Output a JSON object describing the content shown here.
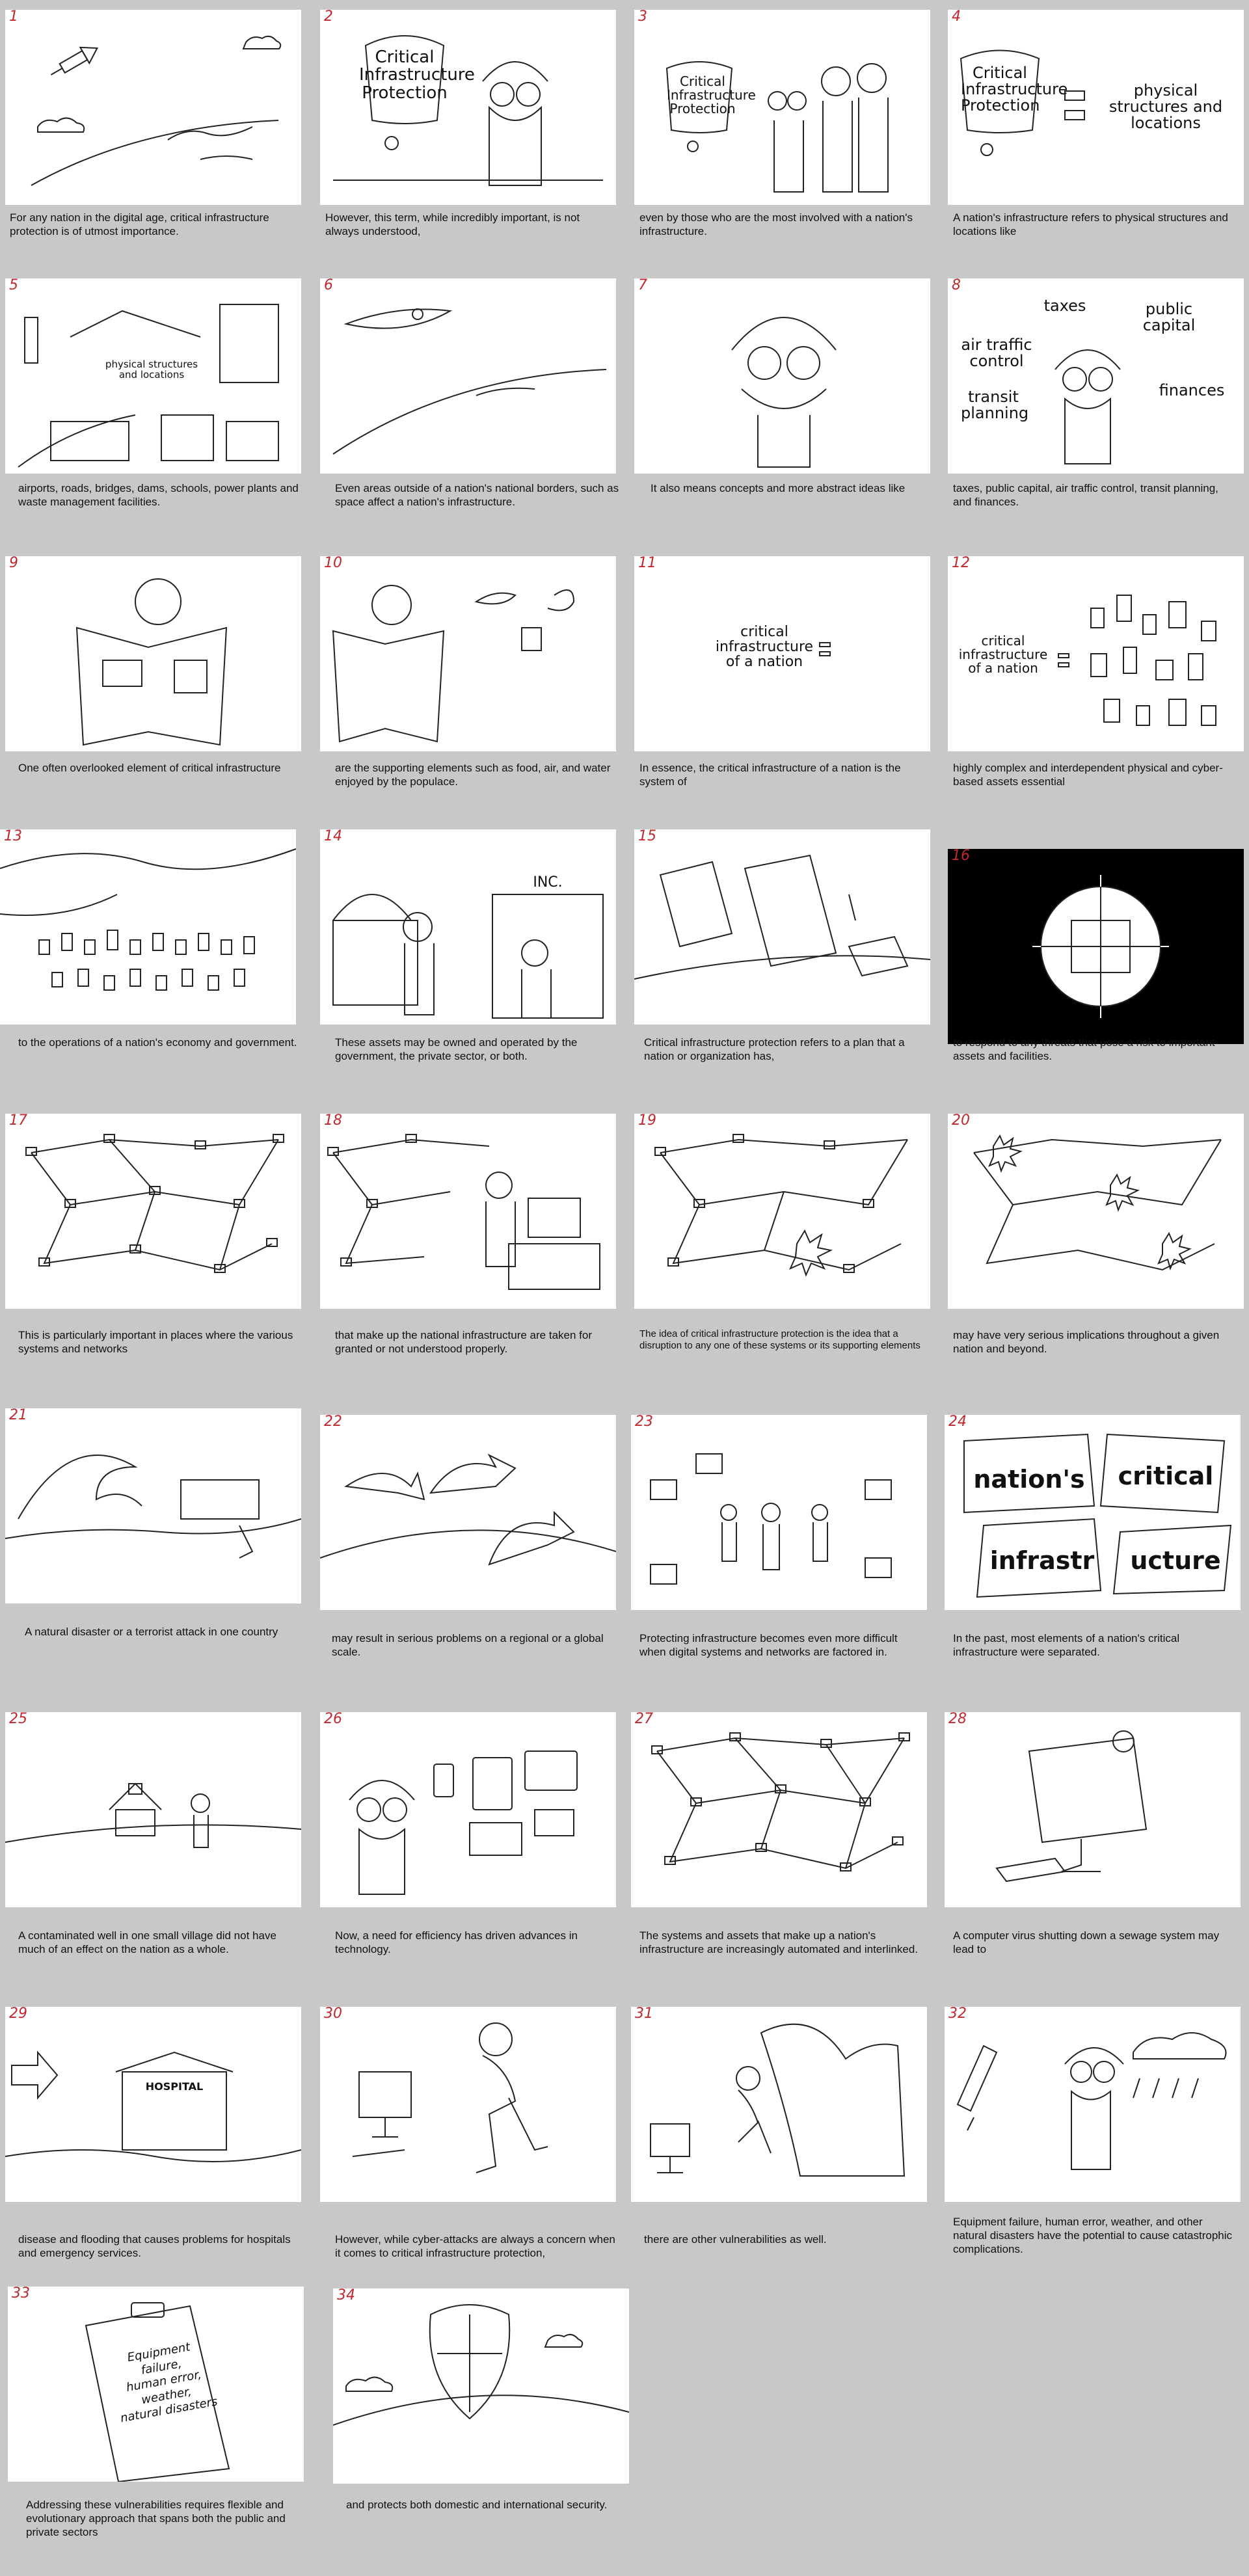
{
  "page": {
    "background": "#c8c8c8",
    "panel_number_color": "#c1272d"
  },
  "panels": [
    {
      "number": "1",
      "caption": "For any nation in the digital age, critical infrastructure protection is of utmost importance."
    },
    {
      "number": "2",
      "caption": "However, this term, while incredibly important, is not always understood,",
      "text": "Critical Infrastructure Protection"
    },
    {
      "number": "3",
      "caption": "even by those who are the most involved with a nation's infrastructure.",
      "text": "Critical Infrastructure Protection"
    },
    {
      "number": "4",
      "caption": "A nation's infrastructure refers to physical structures and locations like",
      "text": "Critical Infrastructure Protection",
      "text2": "physical structures and locations"
    },
    {
      "number": "5",
      "caption": "airports, roads, bridges, dams, schools, power plants and waste management facilities.",
      "text": "physical structures and locations"
    },
    {
      "number": "6",
      "caption": "Even areas outside of a nation's national borders, such as space affect a nation's infrastructure."
    },
    {
      "number": "7",
      "caption": "It also means concepts and more abstract ideas like"
    },
    {
      "number": "8",
      "caption": "taxes, public capital, air traffic control, transit planning, and finances.",
      "words": [
        "taxes",
        "public capital",
        "air traffic control",
        "transit planning",
        "finances"
      ]
    },
    {
      "number": "9",
      "caption": "One often overlooked element of critical infrastructure"
    },
    {
      "number": "10",
      "caption": "are the supporting elements such as food, air, and water enjoyed by the populace."
    },
    {
      "number": "11",
      "caption": "In essence, the critical infrastructure of a nation is the system of",
      "text": "critical infrastructure of a nation"
    },
    {
      "number": "12",
      "caption": "highly complex and interdependent physical and cyber-based assets essential",
      "text": "critical infrastructure of a nation"
    },
    {
      "number": "13",
      "caption": "to the operations of a nation's economy and government."
    },
    {
      "number": "14",
      "caption": "These assets may be owned and operated by the government, the private sector, or both.",
      "text": "INC."
    },
    {
      "number": "15",
      "caption": "Critical infrastructure protection refers to a plan that a nation or organization has,"
    },
    {
      "number": "16",
      "caption": "to respond to any threats that pose a risk to important assets and facilities."
    },
    {
      "number": "17",
      "caption": "This is particularly important in places where the various systems and networks"
    },
    {
      "number": "18",
      "caption": "that make up the national infrastructure are taken for granted or not understood properly."
    },
    {
      "number": "19",
      "caption": "The idea of critical infrastructure protection is the idea that a disruption to any one of these systems or its supporting elements"
    },
    {
      "number": "20",
      "caption": "may have very serious implications throughout a given nation and beyond."
    },
    {
      "number": "21",
      "caption": "A natural disaster or a terrorist attack in one country"
    },
    {
      "number": "22",
      "caption": "may result in serious problems on a regional or a global scale."
    },
    {
      "number": "23",
      "caption": "Protecting infrastructure becomes even more difficult when digital systems and networks are factored in."
    },
    {
      "number": "24",
      "caption": "In the past, most elements of a nation's critical infrastructure were separated.",
      "pieces": [
        "nation's",
        "critical",
        "infrastr",
        "ucture"
      ]
    },
    {
      "number": "25",
      "caption": "A contaminated well in one small village did not have much of an effect on the nation as a whole."
    },
    {
      "number": "26",
      "caption": "Now, a need for efficiency has driven advances in technology."
    },
    {
      "number": "27",
      "caption": "The systems and assets that make up a nation's infrastructure are increasingly automated and interlinked."
    },
    {
      "number": "28",
      "caption": "A computer virus shutting down a sewage system may lead to"
    },
    {
      "number": "29",
      "caption": "disease and flooding that causes problems for hospitals and emergency services.",
      "text": "HOSPITAL"
    },
    {
      "number": "30",
      "caption": "However, while cyber-attacks are always a concern when it comes to critical infrastructure protection,"
    },
    {
      "number": "31",
      "caption": "there are other vulnerabilities as well."
    },
    {
      "number": "32",
      "caption": "Equipment failure, human error, weather, and other natural disasters have the potential to cause catastrophic complications."
    },
    {
      "number": "33",
      "caption": "Addressing these vulnerabilities requires flexible and evolutionary approach that spans both the public and private sectors",
      "words": [
        "Equipment",
        "failure,",
        "human error,",
        "weather,",
        "natural disasters"
      ]
    },
    {
      "number": "34",
      "caption": "and protects both domestic and international security."
    }
  ]
}
